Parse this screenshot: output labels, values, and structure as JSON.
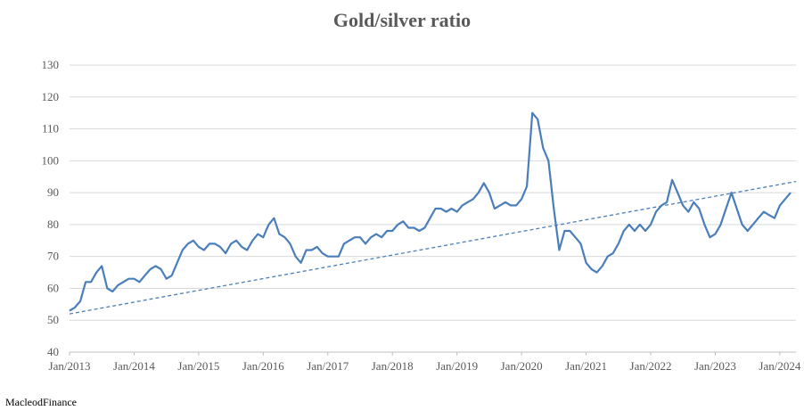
{
  "title": "Gold/silver ratio",
  "source": "MacleodFinance",
  "colors": {
    "series": "#4a7ebb",
    "grid": "#d9d9d9",
    "axis": "#bfbfbf",
    "text": "#595959"
  },
  "chart_data": {
    "type": "line",
    "title": "Gold/silver ratio",
    "xlabel": "",
    "ylabel": "",
    "ylim": [
      40,
      130
    ],
    "y_ticks": [
      40,
      50,
      60,
      70,
      80,
      90,
      100,
      110,
      120,
      130
    ],
    "x_ticks": [
      "Jan/2013",
      "Jan/2014",
      "Jan/2015",
      "Jan/2016",
      "Jan/2017",
      "Jan/2018",
      "Jan/2019",
      "Jan/2020",
      "Jan/2021",
      "Jan/2022",
      "Jan/2023",
      "Jan/2024"
    ],
    "xlim": [
      "2013-01",
      "2024-04"
    ],
    "grid": true,
    "series": [
      {
        "style": "solid",
        "x": [
          "2013-01",
          "2013-02",
          "2013-03",
          "2013-04",
          "2013-05",
          "2013-06",
          "2013-07",
          "2013-08",
          "2013-09",
          "2013-10",
          "2013-11",
          "2013-12",
          "2014-01",
          "2014-02",
          "2014-03",
          "2014-04",
          "2014-05",
          "2014-06",
          "2014-07",
          "2014-08",
          "2014-09",
          "2014-10",
          "2014-11",
          "2014-12",
          "2015-01",
          "2015-02",
          "2015-03",
          "2015-04",
          "2015-05",
          "2015-06",
          "2015-07",
          "2015-08",
          "2015-09",
          "2015-10",
          "2015-11",
          "2015-12",
          "2016-01",
          "2016-02",
          "2016-03",
          "2016-04",
          "2016-05",
          "2016-06",
          "2016-07",
          "2016-08",
          "2016-09",
          "2016-10",
          "2016-11",
          "2016-12",
          "2017-01",
          "2017-02",
          "2017-03",
          "2017-04",
          "2017-05",
          "2017-06",
          "2017-07",
          "2017-08",
          "2017-09",
          "2017-10",
          "2017-11",
          "2017-12",
          "2018-01",
          "2018-02",
          "2018-03",
          "2018-04",
          "2018-05",
          "2018-06",
          "2018-07",
          "2018-08",
          "2018-09",
          "2018-10",
          "2018-11",
          "2018-12",
          "2019-01",
          "2019-02",
          "2019-03",
          "2019-04",
          "2019-05",
          "2019-06",
          "2019-07",
          "2019-08",
          "2019-09",
          "2019-10",
          "2019-11",
          "2019-12",
          "2020-01",
          "2020-02",
          "2020-03",
          "2020-04",
          "2020-05",
          "2020-06",
          "2020-07",
          "2020-08",
          "2020-09",
          "2020-10",
          "2020-11",
          "2020-12",
          "2021-01",
          "2021-02",
          "2021-03",
          "2021-04",
          "2021-05",
          "2021-06",
          "2021-07",
          "2021-08",
          "2021-09",
          "2021-10",
          "2021-11",
          "2021-12",
          "2022-01",
          "2022-02",
          "2022-03",
          "2022-04",
          "2022-05",
          "2022-06",
          "2022-07",
          "2022-08",
          "2022-09",
          "2022-10",
          "2022-11",
          "2022-12",
          "2023-01",
          "2023-02",
          "2023-03",
          "2023-04",
          "2023-05",
          "2023-06",
          "2023-07",
          "2023-08",
          "2023-09",
          "2023-10",
          "2023-11",
          "2023-12",
          "2024-01",
          "2024-02",
          "2024-03"
        ],
        "values": [
          53,
          54,
          56,
          62,
          62,
          65,
          67,
          60,
          59,
          61,
          62,
          63,
          63,
          62,
          64,
          66,
          67,
          66,
          63,
          64,
          68,
          72,
          74,
          75,
          73,
          72,
          74,
          74,
          73,
          71,
          74,
          75,
          73,
          72,
          75,
          77,
          76,
          80,
          82,
          77,
          76,
          74,
          70,
          68,
          72,
          72,
          73,
          71,
          70,
          70,
          70,
          74,
          75,
          76,
          76,
          74,
          76,
          77,
          76,
          78,
          78,
          80,
          81,
          79,
          79,
          78,
          79,
          82,
          85,
          85,
          84,
          85,
          84,
          86,
          87,
          88,
          90,
          93,
          90,
          85,
          86,
          87,
          86,
          86,
          88,
          92,
          115,
          113,
          104,
          100,
          85,
          72,
          78,
          78,
          76,
          74,
          68,
          66,
          65,
          67,
          70,
          71,
          74,
          78,
          80,
          78,
          80,
          78,
          80,
          84,
          86,
          87,
          94,
          90,
          86,
          84,
          87,
          85,
          80,
          76,
          77,
          80,
          85,
          90,
          85,
          80,
          78,
          80,
          82,
          84,
          83,
          82,
          86,
          88,
          90
        ]
      },
      {
        "style": "dashed",
        "name": "",
        "x": [
          "2013-01",
          "2024-04"
        ],
        "values": [
          52,
          93.5
        ]
      }
    ]
  }
}
